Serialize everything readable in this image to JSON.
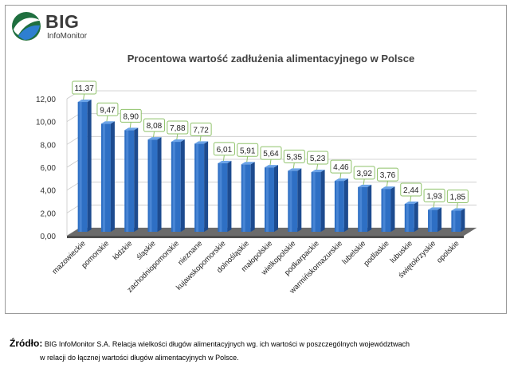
{
  "logo": {
    "name": "BIG",
    "subtitle": "InfoMonitor"
  },
  "colors": {
    "bar": "#2e6fc4",
    "bar_side": "#1d4b8f",
    "bar_top": "#6aa3e8",
    "floor": "#6b6b6b",
    "label_border": "#8fc26a"
  },
  "chart_data": {
    "type": "bar",
    "title": "Procentowa wartość zadłużenia alimentacyjnego w Polsce",
    "xlabel": "",
    "ylabel": "",
    "ylim": [
      0,
      12
    ],
    "yticks": [
      "0,00",
      "2,00",
      "4,00",
      "6,00",
      "8,00",
      "10,00",
      "12,00"
    ],
    "grid": true,
    "categories": [
      "mazowieckie",
      "pomorskie",
      "łódzkie",
      "śląskie",
      "zachodniopomorskie",
      "nieznane",
      "kujawskopomorskie",
      "dolnośląskie",
      "małopolskie",
      "wielkopolskie",
      "podkarpackie",
      "warmińskomazurskie",
      "lubelskie",
      "podlaskie",
      "lubuskie",
      "świętokrzyskie",
      "opolskie"
    ],
    "values": [
      11.37,
      9.47,
      8.9,
      8.08,
      7.88,
      7.72,
      6.01,
      5.91,
      5.64,
      5.35,
      5.23,
      4.46,
      3.92,
      3.76,
      2.44,
      1.93,
      1.85
    ],
    "value_labels": [
      "11,37",
      "9,47",
      "8,90",
      "8,08",
      "7,88",
      "7,72",
      "6,01",
      "5,91",
      "5,64",
      "5,35",
      "5,23",
      "4,46",
      "3,92",
      "3,76",
      "2,44",
      "1,93",
      "1,85"
    ]
  },
  "source": {
    "label": "Źródło:",
    "line1": "BIG InfoMonitor S.A. Relacja wielkości długów alimentacyjnych wg. ich wartości w poszczególnych województwach",
    "line2": "w relacji do łącznej wartości długów alimentacyjnych w Polsce."
  }
}
